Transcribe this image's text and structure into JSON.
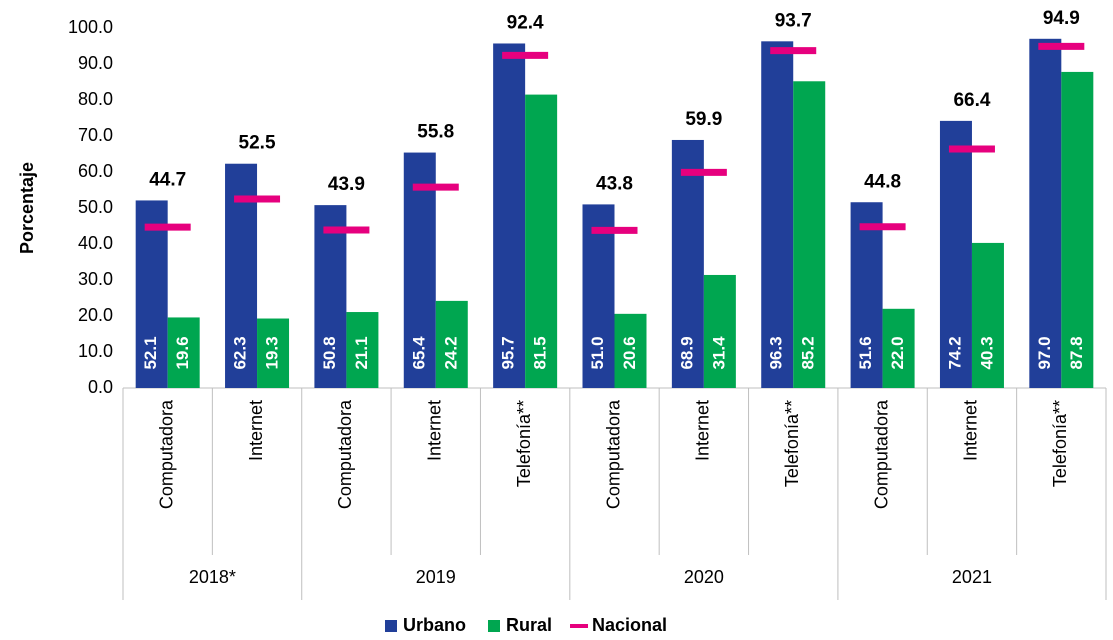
{
  "chart_data": {
    "type": "bar",
    "y_label": "Porcentaje",
    "groups": [
      {
        "name": "2018*",
        "categories": [
          "Computadora",
          "Internet"
        ]
      },
      {
        "name": "2019",
        "categories": [
          "Computadora",
          "Internet",
          "Telefonía**"
        ]
      },
      {
        "name": "2020",
        "categories": [
          "Computadora",
          "Internet",
          "Telefonía**"
        ]
      },
      {
        "name": "2021",
        "categories": [
          "Computadora",
          "Internet",
          "Telefonía**"
        ]
      }
    ],
    "series": [
      {
        "name": "Urbano",
        "color": "#213f99",
        "kind": "bar",
        "values": [
          52.1,
          62.3,
          50.8,
          65.4,
          95.7,
          51.0,
          68.9,
          96.3,
          51.6,
          74.2,
          97.0
        ],
        "value_labels": [
          "52.1",
          "62.3",
          "50.8",
          "65.4",
          "95.7",
          "51.0",
          "68.9",
          "96.3",
          "51.6",
          "74.2",
          "97.0"
        ]
      },
      {
        "name": "Rural",
        "color": "#00a650",
        "kind": "bar",
        "values": [
          19.6,
          19.3,
          21.1,
          24.2,
          81.5,
          20.6,
          31.4,
          85.2,
          22.0,
          40.3,
          87.8
        ],
        "value_labels": [
          "19.6",
          "19.3",
          "21.1",
          "24.2",
          "81.5",
          "20.6",
          "31.4",
          "85.2",
          "22.0",
          "40.3",
          "87.8"
        ]
      },
      {
        "name": "Nacional",
        "color": "#e6007e",
        "kind": "marker",
        "values": [
          44.7,
          52.5,
          43.9,
          55.8,
          92.4,
          43.8,
          59.9,
          93.7,
          44.8,
          66.4,
          94.9
        ]
      }
    ],
    "ylim": [
      0,
      100
    ],
    "yticks": [
      {
        "value": 0,
        "label": "0.0"
      },
      {
        "value": 10,
        "label": "10.0"
      },
      {
        "value": 20,
        "label": "20.0"
      },
      {
        "value": 30,
        "label": "30.0"
      },
      {
        "value": 40,
        "label": "40.0"
      },
      {
        "value": 50,
        "label": "50.0"
      },
      {
        "value": 60,
        "label": "60.0"
      },
      {
        "value": 70,
        "label": "70.0"
      },
      {
        "value": 80,
        "label": "80.0"
      },
      {
        "value": 90,
        "label": "90.0"
      },
      {
        "value": 100,
        "label": "100.0"
      }
    ],
    "legend": "bottom"
  }
}
